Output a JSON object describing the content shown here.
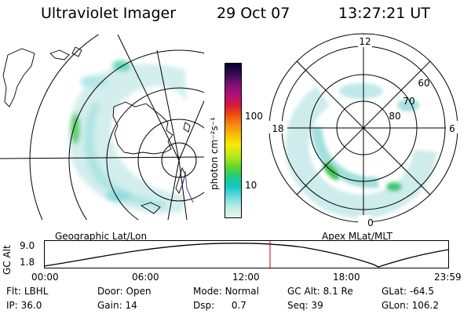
{
  "header": {
    "title": "Ultraviolet Imager",
    "date": "29 Oct 07",
    "time": "13:27:21 UT"
  },
  "left_map": {
    "caption": "Geographic Lat/Lon"
  },
  "right_map": {
    "caption": "Apex MLat/MLT",
    "hour_labels": {
      "top": "12",
      "bottom": "0",
      "left": "18",
      "right": "6"
    },
    "lat_labels": [
      "60",
      "70",
      "80"
    ]
  },
  "colorbar": {
    "unit_label": "photon cm⁻²s⁻¹",
    "ticks": [
      "100",
      "10"
    ],
    "colors": [
      "#000033",
      "#3a0a55",
      "#7a1070",
      "#b0107a",
      "#d81a3a",
      "#ee4a10",
      "#f78d10",
      "#fbc200",
      "#f4ee00",
      "#b8e81c",
      "#62d92a",
      "#22cc7a",
      "#14c9c4",
      "#6fdce0",
      "#b8ece6",
      "#e8f6ec"
    ]
  },
  "altitude_panel": {
    "axis_label": "GC Alt",
    "y_ticks": [
      "9.0",
      "1.8"
    ],
    "x_ticks": [
      "00:00",
      "06:00",
      "12:00",
      "18:00",
      "23:59"
    ],
    "current_time_fraction": 0.56
  },
  "info": {
    "flt_label": "Flt:",
    "flt_value": "LBHL",
    "ip_label": "IP:",
    "ip_value": "36.0",
    "door_label": "Door:",
    "door_value": "Open",
    "gain_label": "Gain:",
    "gain_value": "14",
    "mode_label": "Mode:",
    "mode_value": "Normal",
    "dsp_label": "Dsp:",
    "dsp_value": "0.7",
    "gcalt_label": "GC Alt:",
    "gcalt_value": "8.1 Re",
    "seq_label": "Seq:",
    "seq_value": "39",
    "glat_label": "GLat:",
    "glat_value": "-64.5",
    "glon_label": "GLon:",
    "glon_value": "106.2"
  },
  "colors": {
    "orbit_marker": "#cc0000",
    "glow": "#cfeeee",
    "bright": "#63d8d2",
    "aurora_green": "#46c648"
  }
}
